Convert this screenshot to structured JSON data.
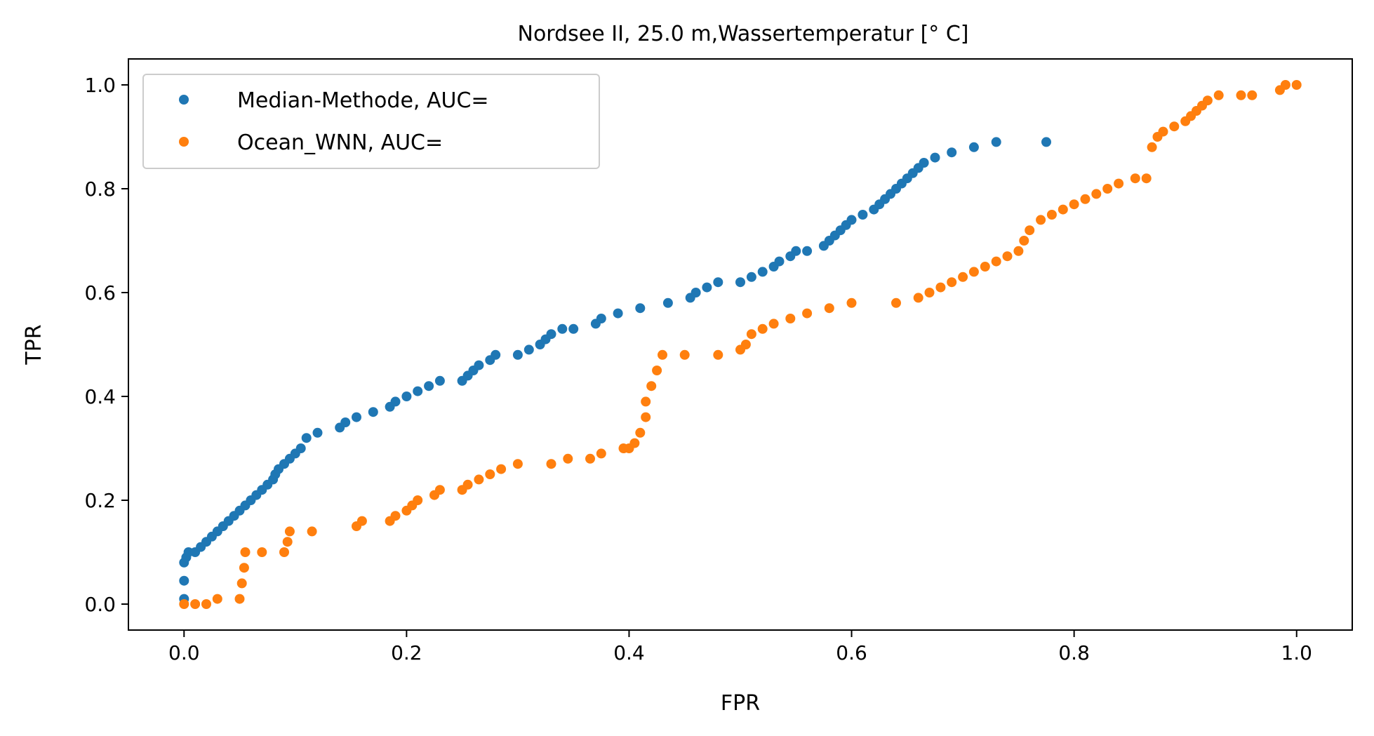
{
  "chart_data": {
    "type": "scatter",
    "title": "Nordsee II, 25.0 m,Wassertemperatur [° C]",
    "xlabel": "FPR",
    "ylabel": "TPR",
    "xlim": [
      -0.05,
      1.05
    ],
    "ylim": [
      -0.05,
      1.05
    ],
    "xticks": [
      0.0,
      0.2,
      0.4,
      0.6,
      0.8,
      1.0
    ],
    "yticks": [
      0.0,
      0.2,
      0.4,
      0.6,
      0.8,
      1.0
    ],
    "xtick_labels": [
      "0.0",
      "0.2",
      "0.4",
      "0.6",
      "0.8",
      "1.0"
    ],
    "ytick_labels": [
      "0.0",
      "0.2",
      "0.4",
      "0.6",
      "0.8",
      "1.0"
    ],
    "grid": false,
    "legend_position": "top-left",
    "series": [
      {
        "name": "Median-Methode, AUC=",
        "color": "#1f77b4",
        "points": [
          [
            0.0,
            0.01
          ],
          [
            0.0,
            0.045
          ],
          [
            0.0,
            0.08
          ],
          [
            0.002,
            0.09
          ],
          [
            0.004,
            0.1
          ],
          [
            0.01,
            0.1
          ],
          [
            0.015,
            0.11
          ],
          [
            0.02,
            0.12
          ],
          [
            0.025,
            0.13
          ],
          [
            0.03,
            0.14
          ],
          [
            0.035,
            0.15
          ],
          [
            0.04,
            0.16
          ],
          [
            0.045,
            0.17
          ],
          [
            0.05,
            0.18
          ],
          [
            0.055,
            0.19
          ],
          [
            0.06,
            0.2
          ],
          [
            0.065,
            0.21
          ],
          [
            0.07,
            0.22
          ],
          [
            0.075,
            0.23
          ],
          [
            0.08,
            0.24
          ],
          [
            0.082,
            0.25
          ],
          [
            0.085,
            0.26
          ],
          [
            0.09,
            0.27
          ],
          [
            0.095,
            0.28
          ],
          [
            0.1,
            0.29
          ],
          [
            0.105,
            0.3
          ],
          [
            0.11,
            0.32
          ],
          [
            0.12,
            0.33
          ],
          [
            0.14,
            0.34
          ],
          [
            0.145,
            0.35
          ],
          [
            0.155,
            0.36
          ],
          [
            0.17,
            0.37
          ],
          [
            0.185,
            0.38
          ],
          [
            0.19,
            0.39
          ],
          [
            0.2,
            0.4
          ],
          [
            0.21,
            0.41
          ],
          [
            0.22,
            0.42
          ],
          [
            0.23,
            0.43
          ],
          [
            0.25,
            0.43
          ],
          [
            0.255,
            0.44
          ],
          [
            0.26,
            0.45
          ],
          [
            0.265,
            0.46
          ],
          [
            0.275,
            0.47
          ],
          [
            0.28,
            0.48
          ],
          [
            0.3,
            0.48
          ],
          [
            0.31,
            0.49
          ],
          [
            0.32,
            0.5
          ],
          [
            0.325,
            0.51
          ],
          [
            0.33,
            0.52
          ],
          [
            0.34,
            0.53
          ],
          [
            0.35,
            0.53
          ],
          [
            0.37,
            0.54
          ],
          [
            0.375,
            0.55
          ],
          [
            0.39,
            0.56
          ],
          [
            0.41,
            0.57
          ],
          [
            0.435,
            0.58
          ],
          [
            0.455,
            0.59
          ],
          [
            0.46,
            0.6
          ],
          [
            0.47,
            0.61
          ],
          [
            0.48,
            0.62
          ],
          [
            0.5,
            0.62
          ],
          [
            0.51,
            0.63
          ],
          [
            0.52,
            0.64
          ],
          [
            0.53,
            0.65
          ],
          [
            0.535,
            0.66
          ],
          [
            0.545,
            0.67
          ],
          [
            0.55,
            0.68
          ],
          [
            0.56,
            0.68
          ],
          [
            0.575,
            0.69
          ],
          [
            0.58,
            0.7
          ],
          [
            0.585,
            0.71
          ],
          [
            0.59,
            0.72
          ],
          [
            0.595,
            0.73
          ],
          [
            0.6,
            0.74
          ],
          [
            0.61,
            0.75
          ],
          [
            0.62,
            0.76
          ],
          [
            0.625,
            0.77
          ],
          [
            0.63,
            0.78
          ],
          [
            0.635,
            0.79
          ],
          [
            0.64,
            0.8
          ],
          [
            0.645,
            0.81
          ],
          [
            0.65,
            0.82
          ],
          [
            0.655,
            0.83
          ],
          [
            0.66,
            0.84
          ],
          [
            0.665,
            0.85
          ],
          [
            0.675,
            0.86
          ],
          [
            0.69,
            0.87
          ],
          [
            0.71,
            0.88
          ],
          [
            0.73,
            0.89
          ],
          [
            0.775,
            0.89
          ]
        ]
      },
      {
        "name": "Ocean_WNN, AUC=",
        "color": "#ff7f0e",
        "points": [
          [
            0.0,
            0.0
          ],
          [
            0.01,
            0.0
          ],
          [
            0.02,
            0.0
          ],
          [
            0.03,
            0.01
          ],
          [
            0.05,
            0.01
          ],
          [
            0.052,
            0.04
          ],
          [
            0.054,
            0.07
          ],
          [
            0.055,
            0.1
          ],
          [
            0.07,
            0.1
          ],
          [
            0.09,
            0.1
          ],
          [
            0.093,
            0.12
          ],
          [
            0.095,
            0.14
          ],
          [
            0.115,
            0.14
          ],
          [
            0.155,
            0.15
          ],
          [
            0.16,
            0.16
          ],
          [
            0.185,
            0.16
          ],
          [
            0.19,
            0.17
          ],
          [
            0.2,
            0.18
          ],
          [
            0.205,
            0.19
          ],
          [
            0.21,
            0.2
          ],
          [
            0.225,
            0.21
          ],
          [
            0.23,
            0.22
          ],
          [
            0.25,
            0.22
          ],
          [
            0.255,
            0.23
          ],
          [
            0.265,
            0.24
          ],
          [
            0.275,
            0.25
          ],
          [
            0.285,
            0.26
          ],
          [
            0.3,
            0.27
          ],
          [
            0.33,
            0.27
          ],
          [
            0.345,
            0.28
          ],
          [
            0.365,
            0.28
          ],
          [
            0.375,
            0.29
          ],
          [
            0.395,
            0.3
          ],
          [
            0.4,
            0.3
          ],
          [
            0.405,
            0.31
          ],
          [
            0.41,
            0.33
          ],
          [
            0.415,
            0.36
          ],
          [
            0.415,
            0.39
          ],
          [
            0.42,
            0.42
          ],
          [
            0.425,
            0.45
          ],
          [
            0.43,
            0.48
          ],
          [
            0.45,
            0.48
          ],
          [
            0.48,
            0.48
          ],
          [
            0.5,
            0.49
          ],
          [
            0.505,
            0.5
          ],
          [
            0.51,
            0.52
          ],
          [
            0.52,
            0.53
          ],
          [
            0.53,
            0.54
          ],
          [
            0.545,
            0.55
          ],
          [
            0.56,
            0.56
          ],
          [
            0.58,
            0.57
          ],
          [
            0.6,
            0.58
          ],
          [
            0.64,
            0.58
          ],
          [
            0.66,
            0.59
          ],
          [
            0.67,
            0.6
          ],
          [
            0.68,
            0.61
          ],
          [
            0.69,
            0.62
          ],
          [
            0.7,
            0.63
          ],
          [
            0.71,
            0.64
          ],
          [
            0.72,
            0.65
          ],
          [
            0.73,
            0.66
          ],
          [
            0.74,
            0.67
          ],
          [
            0.75,
            0.68
          ],
          [
            0.755,
            0.7
          ],
          [
            0.76,
            0.72
          ],
          [
            0.77,
            0.74
          ],
          [
            0.78,
            0.75
          ],
          [
            0.79,
            0.76
          ],
          [
            0.8,
            0.77
          ],
          [
            0.81,
            0.78
          ],
          [
            0.82,
            0.79
          ],
          [
            0.83,
            0.8
          ],
          [
            0.84,
            0.81
          ],
          [
            0.855,
            0.82
          ],
          [
            0.865,
            0.82
          ],
          [
            0.87,
            0.88
          ],
          [
            0.875,
            0.9
          ],
          [
            0.88,
            0.91
          ],
          [
            0.89,
            0.92
          ],
          [
            0.9,
            0.93
          ],
          [
            0.905,
            0.94
          ],
          [
            0.91,
            0.95
          ],
          [
            0.915,
            0.96
          ],
          [
            0.92,
            0.97
          ],
          [
            0.93,
            0.98
          ],
          [
            0.95,
            0.98
          ],
          [
            0.96,
            0.98
          ],
          [
            0.985,
            0.99
          ],
          [
            0.99,
            1.0
          ],
          [
            1.0,
            1.0
          ]
        ]
      }
    ]
  }
}
